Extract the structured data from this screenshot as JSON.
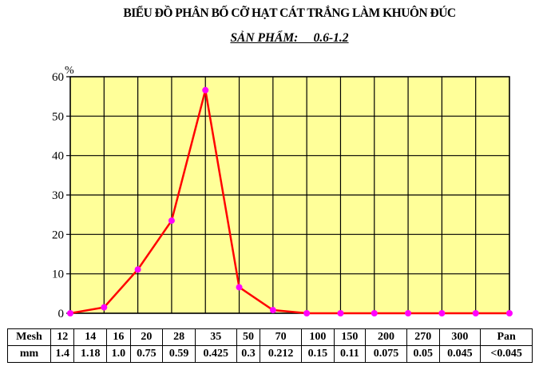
{
  "chart_data": {
    "type": "line",
    "title": "BIỂU ĐỒ PHÂN BỐ CỠ HẠT CÁT TRẮNG LÀM KHUÔN ĐÚC",
    "subtitle": "SẢN PHẨM:     0.6-1.2",
    "ylabel": "%",
    "ylim": [
      0,
      60
    ],
    "yticks": [
      "0",
      "10",
      "20",
      "30",
      "40",
      "50",
      "60"
    ],
    "grid": true,
    "categories": [
      "12",
      "14",
      "16",
      "20",
      "28",
      "35",
      "50",
      "70",
      "100",
      "150",
      "200",
      "270",
      "300",
      "Pan"
    ],
    "values": [
      0,
      1.5,
      11.1,
      23.5,
      56.6,
      6.6,
      0.8,
      0,
      0,
      0,
      0,
      0,
      0,
      0
    ],
    "colors": {
      "plot_bg": "#FFFF99",
      "line": "#FF0000",
      "marker": "#FF00FF",
      "grid": "#000000"
    }
  },
  "table": {
    "mesh_label": "Mesh",
    "mm_label": "mm",
    "mesh": [
      "12",
      "14",
      "16",
      "20",
      "28",
      "35",
      "50",
      "70",
      "100",
      "150",
      "200",
      "270",
      "300",
      "Pan"
    ],
    "mm": [
      "1.4",
      "1.18",
      "1.0",
      "0.75",
      "0.59",
      "0.425",
      "0.3",
      "0.212",
      "0.15",
      "0.11",
      "0.075",
      "0.05",
      "0.045",
      "<0.045"
    ]
  }
}
